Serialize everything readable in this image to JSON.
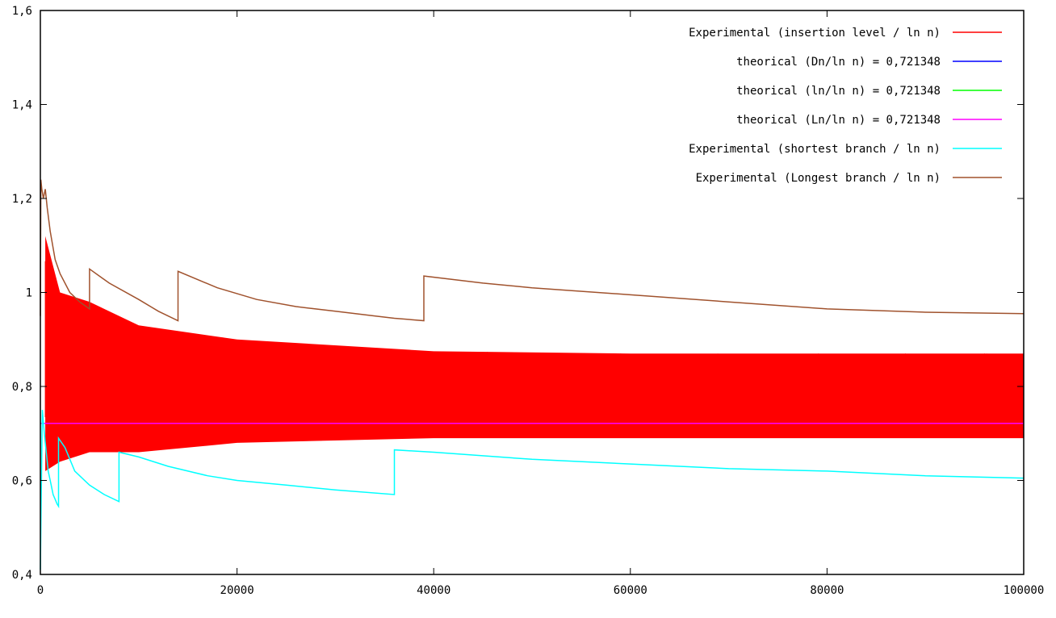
{
  "chart_data": {
    "type": "line",
    "title": "",
    "xlabel": "",
    "ylabel": "",
    "xlim": [
      0,
      100000
    ],
    "ylim": [
      0.4,
      1.6
    ],
    "x_ticks": [
      0,
      20000,
      40000,
      60000,
      80000,
      100000
    ],
    "x_tick_labels": [
      "0",
      "20000",
      "40000",
      "60000",
      "80000",
      "100000"
    ],
    "y_ticks": [
      0.4,
      0.6,
      0.8,
      1.0,
      1.2,
      1.4,
      1.6
    ],
    "y_tick_labels": [
      "0,4",
      "0,6",
      "0,8",
      "1",
      "1,2",
      "1,4",
      "1,6"
    ],
    "grid": false,
    "legend_position": "top-right",
    "series": [
      {
        "name": "Experimental (insertion level / ln n)",
        "color": "#ff0000",
        "style": "dense oscillating band",
        "x": [
          500,
          2000,
          5000,
          10000,
          20000,
          40000,
          60000,
          80000,
          100000
        ],
        "upper": [
          1.12,
          1.0,
          0.98,
          0.93,
          0.9,
          0.875,
          0.87,
          0.87,
          0.87
        ],
        "lower": [
          0.62,
          0.64,
          0.66,
          0.66,
          0.68,
          0.69,
          0.69,
          0.69,
          0.69
        ]
      },
      {
        "name": "theorical (Dn/ln n) = 0,721348",
        "color": "#0000ff",
        "x": [
          0,
          100000
        ],
        "y": [
          0.721348,
          0.721348
        ]
      },
      {
        "name": "theorical (ln/ln n) = 0,721348",
        "color": "#00ff00",
        "x": [
          0,
          100000
        ],
        "y": [
          0.721348,
          0.721348
        ]
      },
      {
        "name": "theorical (Ln/ln n) = 0,721348",
        "color": "#ff00ff",
        "x": [
          0,
          100000
        ],
        "y": [
          0.721348,
          0.721348
        ]
      },
      {
        "name": "Experimental (shortest branch / ln n)",
        "color": "#00ffff",
        "x": [
          0,
          200,
          400,
          600,
          800,
          1000,
          1300,
          1500,
          1700,
          1850,
          1850,
          2500,
          3500,
          5000,
          6500,
          8000,
          8000,
          10000,
          13000,
          17000,
          20000,
          25000,
          30000,
          36000,
          36000,
          40000,
          50000,
          60000,
          70000,
          80000,
          90000,
          100000
        ],
        "y": [
          0.41,
          0.75,
          0.7,
          0.66,
          0.62,
          0.6,
          0.57,
          0.56,
          0.55,
          0.545,
          0.69,
          0.67,
          0.62,
          0.59,
          0.57,
          0.555,
          0.66,
          0.65,
          0.63,
          0.61,
          0.6,
          0.59,
          0.58,
          0.57,
          0.665,
          0.66,
          0.645,
          0.635,
          0.625,
          0.62,
          0.61,
          0.605
        ]
      },
      {
        "name": "Experimental (Longest branch / ln n)",
        "color": "#a0522d",
        "x": [
          0,
          50,
          150,
          300,
          500,
          700,
          1000,
          1500,
          2000,
          3000,
          4000,
          5000,
          5000,
          7000,
          10000,
          12000,
          14000,
          14000,
          18000,
          22000,
          26000,
          30000,
          34000,
          36000,
          39000,
          39000,
          45000,
          50000,
          60000,
          70000,
          80000,
          90000,
          100000
        ],
        "y": [
          0.95,
          1.24,
          1.22,
          1.2,
          1.22,
          1.18,
          1.13,
          1.07,
          1.04,
          1.0,
          0.98,
          0.965,
          1.05,
          1.02,
          0.985,
          0.96,
          0.94,
          1.045,
          1.01,
          0.985,
          0.97,
          0.96,
          0.95,
          0.945,
          0.94,
          1.035,
          1.02,
          1.01,
          0.995,
          0.98,
          0.965,
          0.958,
          0.955
        ]
      }
    ]
  }
}
